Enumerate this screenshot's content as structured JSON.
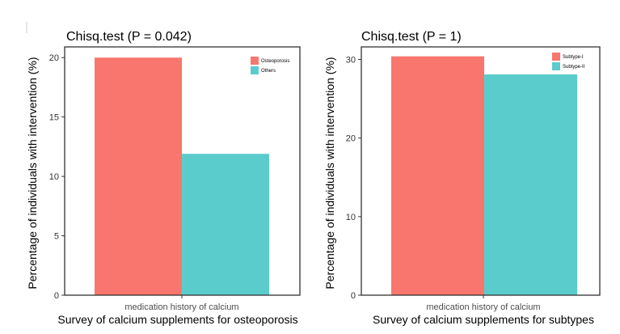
{
  "chart_data": [
    {
      "type": "bar",
      "title": "Chisq.test (P = 0.042)",
      "categories": [
        "medication history of calcium"
      ],
      "xlabel": "Survey of calcium supplements for osteoporosis",
      "ylabel": "Percentage of individuals with intervention (%)",
      "ylim": [
        0,
        20.9
      ],
      "yticks": [
        0,
        5,
        10,
        15,
        20
      ],
      "grid": false,
      "legend_position": "top-right",
      "series": [
        {
          "name": "Osteoporosis",
          "values": [
            20.0
          ],
          "color": "#F8766D"
        },
        {
          "name": "Others",
          "values": [
            11.9
          ],
          "color": "#5BCCCC"
        }
      ]
    },
    {
      "type": "bar",
      "title": "Chisq.test (P = 1)",
      "categories": [
        "medication history of calcium"
      ],
      "xlabel": "Survey of calcium supplements for subtypes",
      "ylabel": "Percentage of individuals with intervention (%)",
      "ylim": [
        0,
        31.6
      ],
      "yticks": [
        0,
        10,
        20,
        30
      ],
      "grid": false,
      "legend_position": "top-right",
      "series": [
        {
          "name": "Subtype-I",
          "values": [
            30.4
          ],
          "color": "#F8766D"
        },
        {
          "name": "Subtype-II",
          "values": [
            28.1
          ],
          "color": "#5BCCCC"
        }
      ]
    }
  ]
}
